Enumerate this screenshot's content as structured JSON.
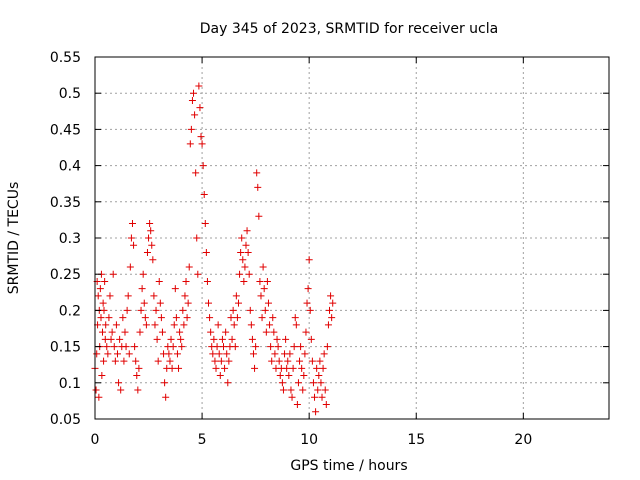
{
  "chart_data": {
    "type": "scatter",
    "title": "Day 345 of 2023, SRMTID for receiver ucla",
    "xlabel": "GPS time / hours",
    "ylabel": "SRMTID / TECUs",
    "xlim": [
      0,
      24
    ],
    "ylim": [
      0.05,
      0.55
    ],
    "xticks": [
      0,
      5,
      10,
      15,
      20
    ],
    "xtick_labels": [
      "0",
      "5",
      "10",
      "15",
      "20"
    ],
    "yticks": [
      0.05,
      0.1,
      0.15,
      0.2,
      0.25,
      0.3,
      0.35,
      0.4,
      0.45,
      0.5,
      0.55
    ],
    "ytick_labels": [
      "0.05",
      "0.1",
      "0.15",
      "0.2",
      "0.25",
      "0.3",
      "0.35",
      "0.4",
      "0.45",
      "0.5",
      "0.55"
    ],
    "grid": true,
    "marker": "+",
    "color": "#e00000",
    "series": [
      {
        "points": [
          [
            0.0,
            0.12
          ],
          [
            0.05,
            0.09
          ],
          [
            0.08,
            0.14
          ],
          [
            0.1,
            0.24
          ],
          [
            0.12,
            0.18
          ],
          [
            0.15,
            0.22
          ],
          [
            0.18,
            0.08
          ],
          [
            0.2,
            0.2
          ],
          [
            0.22,
            0.15
          ],
          [
            0.25,
            0.23
          ],
          [
            0.28,
            0.19
          ],
          [
            0.3,
            0.25
          ],
          [
            0.32,
            0.11
          ],
          [
            0.35,
            0.17
          ],
          [
            0.38,
            0.21
          ],
          [
            0.4,
            0.13
          ],
          [
            0.42,
            0.2
          ],
          [
            0.45,
            0.24
          ],
          [
            0.48,
            0.16
          ],
          [
            0.5,
            0.18
          ],
          [
            0.55,
            0.15
          ],
          [
            0.6,
            0.14
          ],
          [
            0.65,
            0.19
          ],
          [
            0.7,
            0.22
          ],
          [
            0.75,
            0.16
          ],
          [
            0.8,
            0.17
          ],
          [
            0.85,
            0.25
          ],
          [
            0.9,
            0.15
          ],
          [
            0.95,
            0.13
          ],
          [
            1.0,
            0.18
          ],
          [
            1.05,
            0.14
          ],
          [
            1.1,
            0.1
          ],
          [
            1.15,
            0.16
          ],
          [
            1.2,
            0.09
          ],
          [
            1.25,
            0.15
          ],
          [
            1.3,
            0.19
          ],
          [
            1.35,
            0.13
          ],
          [
            1.4,
            0.17
          ],
          [
            1.45,
            0.15
          ],
          [
            1.5,
            0.2
          ],
          [
            1.55,
            0.22
          ],
          [
            1.6,
            0.14
          ],
          [
            1.65,
            0.26
          ],
          [
            1.7,
            0.3
          ],
          [
            1.75,
            0.32
          ],
          [
            1.8,
            0.29
          ],
          [
            1.85,
            0.15
          ],
          [
            1.9,
            0.13
          ],
          [
            1.95,
            0.11
          ],
          [
            2.0,
            0.09
          ],
          [
            2.05,
            0.12
          ],
          [
            2.1,
            0.17
          ],
          [
            2.15,
            0.2
          ],
          [
            2.2,
            0.23
          ],
          [
            2.25,
            0.25
          ],
          [
            2.3,
            0.21
          ],
          [
            2.35,
            0.19
          ],
          [
            2.4,
            0.18
          ],
          [
            2.45,
            0.28
          ],
          [
            2.5,
            0.3
          ],
          [
            2.55,
            0.32
          ],
          [
            2.6,
            0.31
          ],
          [
            2.65,
            0.29
          ],
          [
            2.7,
            0.27
          ],
          [
            2.75,
            0.22
          ],
          [
            2.8,
            0.18
          ],
          [
            2.85,
            0.2
          ],
          [
            2.9,
            0.16
          ],
          [
            2.95,
            0.13
          ],
          [
            3.0,
            0.24
          ],
          [
            3.05,
            0.21
          ],
          [
            3.1,
            0.19
          ],
          [
            3.15,
            0.17
          ],
          [
            3.2,
            0.14
          ],
          [
            3.25,
            0.1
          ],
          [
            3.3,
            0.08
          ],
          [
            3.35,
            0.12
          ],
          [
            3.4,
            0.15
          ],
          [
            3.45,
            0.14
          ],
          [
            3.5,
            0.13
          ],
          [
            3.55,
            0.16
          ],
          [
            3.6,
            0.12
          ],
          [
            3.65,
            0.15
          ],
          [
            3.7,
            0.18
          ],
          [
            3.75,
            0.23
          ],
          [
            3.8,
            0.19
          ],
          [
            3.85,
            0.14
          ],
          [
            3.9,
            0.12
          ],
          [
            3.95,
            0.17
          ],
          [
            4.0,
            0.16
          ],
          [
            4.05,
            0.15
          ],
          [
            4.1,
            0.2
          ],
          [
            4.15,
            0.18
          ],
          [
            4.2,
            0.22
          ],
          [
            4.25,
            0.24
          ],
          [
            4.3,
            0.19
          ],
          [
            4.35,
            0.21
          ],
          [
            4.4,
            0.26
          ],
          [
            4.45,
            0.43
          ],
          [
            4.5,
            0.45
          ],
          [
            4.55,
            0.49
          ],
          [
            4.6,
            0.5
          ],
          [
            4.65,
            0.47
          ],
          [
            4.7,
            0.39
          ],
          [
            4.75,
            0.3
          ],
          [
            4.8,
            0.25
          ],
          [
            4.85,
            0.51
          ],
          [
            4.9,
            0.48
          ],
          [
            4.95,
            0.44
          ],
          [
            5.0,
            0.43
          ],
          [
            5.05,
            0.4
          ],
          [
            5.1,
            0.36
          ],
          [
            5.15,
            0.32
          ],
          [
            5.2,
            0.28
          ],
          [
            5.25,
            0.24
          ],
          [
            5.3,
            0.21
          ],
          [
            5.35,
            0.19
          ],
          [
            5.4,
            0.17
          ],
          [
            5.45,
            0.15
          ],
          [
            5.5,
            0.14
          ],
          [
            5.55,
            0.16
          ],
          [
            5.6,
            0.13
          ],
          [
            5.65,
            0.12
          ],
          [
            5.7,
            0.15
          ],
          [
            5.75,
            0.18
          ],
          [
            5.8,
            0.14
          ],
          [
            5.85,
            0.11
          ],
          [
            5.9,
            0.13
          ],
          [
            5.95,
            0.16
          ],
          [
            6.0,
            0.15
          ],
          [
            6.05,
            0.12
          ],
          [
            6.1,
            0.17
          ],
          [
            6.15,
            0.14
          ],
          [
            6.2,
            0.1
          ],
          [
            6.25,
            0.13
          ],
          [
            6.3,
            0.15
          ],
          [
            6.35,
            0.19
          ],
          [
            6.4,
            0.16
          ],
          [
            6.45,
            0.2
          ],
          [
            6.5,
            0.18
          ],
          [
            6.55,
            0.15
          ],
          [
            6.6,
            0.22
          ],
          [
            6.65,
            0.19
          ],
          [
            6.7,
            0.21
          ],
          [
            6.75,
            0.25
          ],
          [
            6.8,
            0.28
          ],
          [
            6.85,
            0.3
          ],
          [
            6.9,
            0.27
          ],
          [
            6.95,
            0.24
          ],
          [
            7.0,
            0.26
          ],
          [
            7.05,
            0.29
          ],
          [
            7.1,
            0.31
          ],
          [
            7.15,
            0.28
          ],
          [
            7.2,
            0.25
          ],
          [
            7.25,
            0.2
          ],
          [
            7.3,
            0.18
          ],
          [
            7.35,
            0.16
          ],
          [
            7.4,
            0.14
          ],
          [
            7.45,
            0.12
          ],
          [
            7.5,
            0.15
          ],
          [
            7.55,
            0.39
          ],
          [
            7.6,
            0.37
          ],
          [
            7.65,
            0.33
          ],
          [
            7.7,
            0.24
          ],
          [
            7.75,
            0.22
          ],
          [
            7.8,
            0.19
          ],
          [
            7.85,
            0.26
          ],
          [
            7.9,
            0.23
          ],
          [
            7.95,
            0.2
          ],
          [
            8.0,
            0.17
          ],
          [
            8.05,
            0.24
          ],
          [
            8.1,
            0.21
          ],
          [
            8.15,
            0.18
          ],
          [
            8.2,
            0.15
          ],
          [
            8.25,
            0.13
          ],
          [
            8.3,
            0.19
          ],
          [
            8.35,
            0.17
          ],
          [
            8.4,
            0.14
          ],
          [
            8.45,
            0.12
          ],
          [
            8.5,
            0.16
          ],
          [
            8.55,
            0.15
          ],
          [
            8.6,
            0.13
          ],
          [
            8.65,
            0.11
          ],
          [
            8.7,
            0.12
          ],
          [
            8.75,
            0.1
          ],
          [
            8.8,
            0.09
          ],
          [
            8.85,
            0.14
          ],
          [
            8.9,
            0.16
          ],
          [
            8.95,
            0.12
          ],
          [
            9.0,
            0.13
          ],
          [
            9.05,
            0.11
          ],
          [
            9.1,
            0.14
          ],
          [
            9.15,
            0.09
          ],
          [
            9.2,
            0.08
          ],
          [
            9.25,
            0.12
          ],
          [
            9.3,
            0.15
          ],
          [
            9.35,
            0.19
          ],
          [
            9.4,
            0.18
          ],
          [
            9.45,
            0.07
          ],
          [
            9.5,
            0.1
          ],
          [
            9.55,
            0.13
          ],
          [
            9.6,
            0.15
          ],
          [
            9.65,
            0.12
          ],
          [
            9.7,
            0.09
          ],
          [
            9.75,
            0.11
          ],
          [
            9.8,
            0.14
          ],
          [
            9.85,
            0.17
          ],
          [
            9.9,
            0.21
          ],
          [
            9.95,
            0.23
          ],
          [
            10.0,
            0.27
          ],
          [
            10.05,
            0.2
          ],
          [
            10.1,
            0.16
          ],
          [
            10.15,
            0.13
          ],
          [
            10.2,
            0.1
          ],
          [
            10.25,
            0.08
          ],
          [
            10.3,
            0.06
          ],
          [
            10.35,
            0.12
          ],
          [
            10.4,
            0.09
          ],
          [
            10.45,
            0.11
          ],
          [
            10.5,
            0.13
          ],
          [
            10.55,
            0.1
          ],
          [
            10.6,
            0.08
          ],
          [
            10.65,
            0.12
          ],
          [
            10.7,
            0.14
          ],
          [
            10.75,
            0.09
          ],
          [
            10.8,
            0.07
          ],
          [
            10.85,
            0.15
          ],
          [
            10.9,
            0.18
          ],
          [
            10.95,
            0.2
          ],
          [
            11.0,
            0.22
          ],
          [
            11.05,
            0.19
          ],
          [
            11.1,
            0.21
          ]
        ]
      }
    ]
  }
}
